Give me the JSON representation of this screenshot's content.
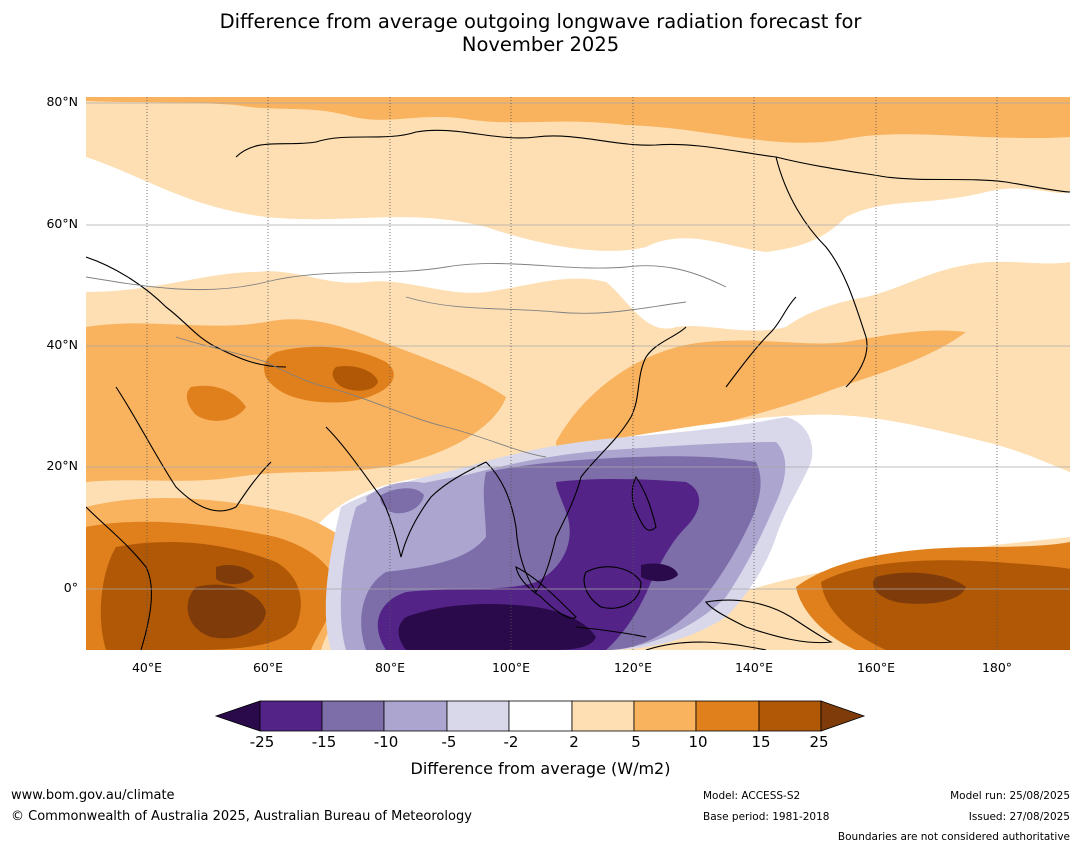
{
  "title": {
    "line1": "Difference from average outgoing longwave radiation forecast for",
    "line2": "November 2025"
  },
  "map": {
    "lat_labels": [
      "80°N",
      "60°N",
      "40°N",
      "20°N",
      "0°"
    ],
    "lon_labels": [
      "40°E",
      "60°E",
      "80°E",
      "100°E",
      "120°E",
      "140°E",
      "160°E",
      "180°"
    ],
    "lat_range": [
      -10,
      80
    ],
    "lon_range": [
      30,
      192
    ]
  },
  "colorbar": {
    "ticks": [
      "-25",
      "-15",
      "-10",
      "-5",
      "-2",
      "2",
      "5",
      "10",
      "15",
      "25"
    ],
    "colors": [
      "#2b0a4c",
      "#542388",
      "#7d6ea9",
      "#aba5cf",
      "#d8d8ea",
      "#ffffff",
      "#fddfb3",
      "#f9b25e",
      "#e0801c",
      "#b15806",
      "#7f3c0a"
    ],
    "title": "Difference from average (W/m2)"
  },
  "footer": {
    "website": "www.bom.gov.au/climate",
    "copyright": "© Commonwealth of Australia 2025, Australian Bureau of Meteorology",
    "model": "Model: ACCESS-S2",
    "base_period": "Base period: 1981-2018",
    "model_run": "Model run: 25/08/2025",
    "issued": "Issued: 27/08/2025",
    "disclaimer": "Boundaries are not considered authoritative"
  }
}
